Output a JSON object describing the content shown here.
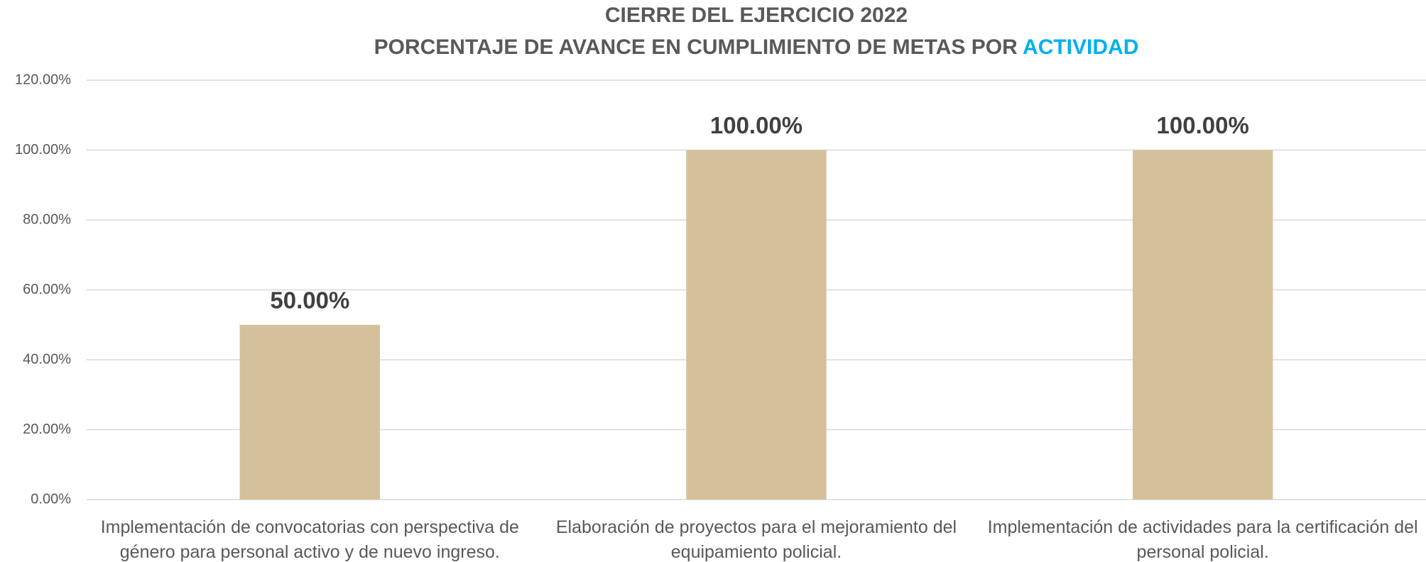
{
  "chart_data": {
    "type": "bar",
    "title": "CIERRE DEL EJERCICIO 2022",
    "subtitle": "PORCENTAJE DE AVANCE EN CUMPLIMIENTO DE METAS POR",
    "subtitle_highlight": "ACTIVIDAD",
    "categories": [
      "Implementación de convocatorias con perspectiva de género para personal activo y de nuevo ingreso.",
      "Elaboración de proyectos para el mejoramiento del equipamiento policial.",
      "Implementación de actividades para la certificación del personal policial."
    ],
    "values": [
      50,
      100,
      100
    ],
    "value_labels": [
      "50.00%",
      "100.00%",
      "100.00%"
    ],
    "color": "#d4c19c",
    "highlight_color": "#00b0f0",
    "ylim": [
      0,
      120
    ],
    "yticks": [
      {
        "value": 0,
        "label": "0.00%"
      },
      {
        "value": 20,
        "label": "20.00%"
      },
      {
        "value": 40,
        "label": "40.00%"
      },
      {
        "value": 60,
        "label": "60.00%"
      },
      {
        "value": 80,
        "label": "80.00%"
      },
      {
        "value": 100,
        "label": "100.00%"
      },
      {
        "value": 120,
        "label": "120.00%"
      }
    ],
    "grid": true
  }
}
